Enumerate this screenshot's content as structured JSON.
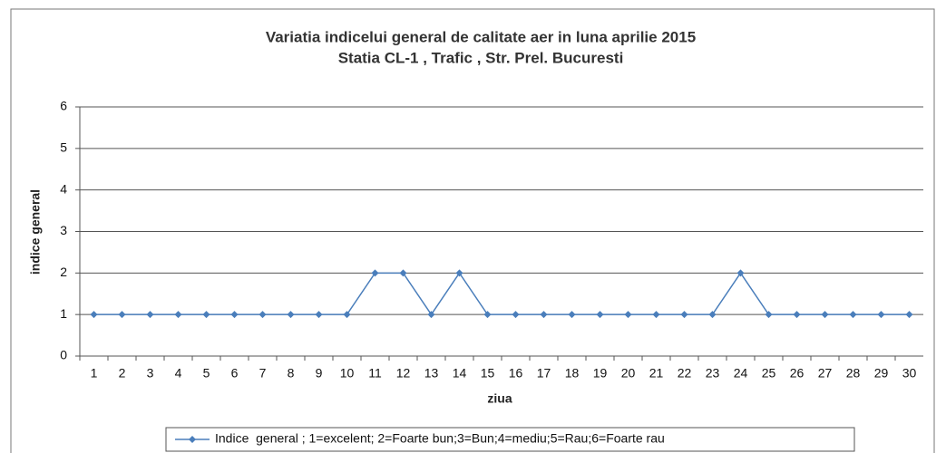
{
  "chart_data": {
    "type": "line",
    "title": "Variatia indicelui general de calitate aer in luna aprilie 2015",
    "subtitle": "Statia CL-1 , Trafic , Str. Prel. Bucuresti",
    "x_label": "ziua",
    "y_label": "indice general",
    "categories": [
      "1",
      "2",
      "3",
      "4",
      "5",
      "6",
      "7",
      "8",
      "9",
      "10",
      "11",
      "12",
      "13",
      "14",
      "15",
      "16",
      "17",
      "18",
      "19",
      "20",
      "21",
      "22",
      "23",
      "24",
      "25",
      "26",
      "27",
      "28",
      "29",
      "30"
    ],
    "series": [
      {
        "name": "Indice  general ; 1=excelent; 2=Foarte bun;3=Bun;4=mediu;5=Rau;6=Foarte rau",
        "color": "#4a7ebb",
        "values": [
          1,
          1,
          1,
          1,
          1,
          1,
          1,
          1,
          1,
          1,
          2,
          2,
          1,
          2,
          1,
          1,
          1,
          1,
          1,
          1,
          1,
          1,
          1,
          2,
          1,
          1,
          1,
          1,
          1,
          1
        ]
      }
    ],
    "ylim": [
      0,
      6
    ],
    "yticks": [
      0,
      1,
      2,
      3,
      4,
      5,
      6
    ],
    "grid": true,
    "legend": "bottom"
  }
}
